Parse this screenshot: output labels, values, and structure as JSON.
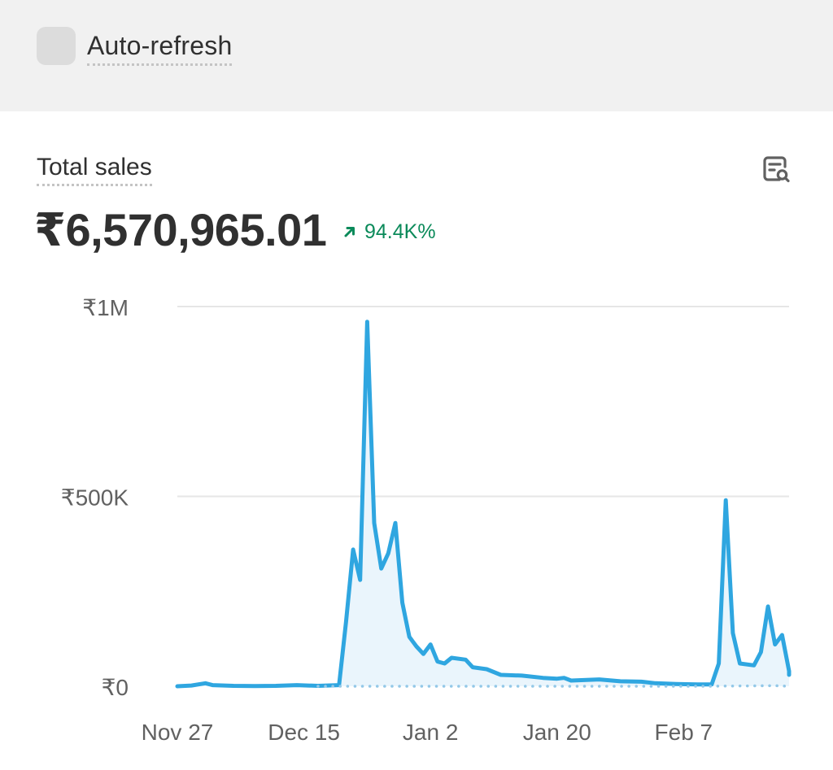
{
  "toolbar": {
    "auto_refresh_label": "Auto-refresh",
    "auto_refresh_checked": false
  },
  "card": {
    "title": "Total sales",
    "total_value": "₹6,570,965.01",
    "change": "94.4K%",
    "change_direction": "up",
    "explore_icon": "chart-search-icon"
  },
  "colors": {
    "line": "#2fa6e0",
    "fill": "#eaf5fc",
    "comparison": "#93c8e8",
    "gridline": "#e6e6e6",
    "positive": "#0b8a5a"
  },
  "chart_data": {
    "type": "line",
    "title": "",
    "xlabel": "",
    "ylabel": "",
    "ylim": [
      0,
      1000000
    ],
    "y_ticks": [
      {
        "value": 0,
        "label": "₹0"
      },
      {
        "value": 500000,
        "label": "₹500K"
      },
      {
        "value": 1000000,
        "label": "₹1M"
      }
    ],
    "x_range": [
      "2024-11-27",
      "2025-02-22"
    ],
    "x_ticks": [
      {
        "date": "2024-11-27",
        "label": "Nov 27"
      },
      {
        "date": "2024-12-15",
        "label": "Dec 15"
      },
      {
        "date": "2025-01-02",
        "label": "Jan 2"
      },
      {
        "date": "2025-01-20",
        "label": "Jan 20"
      },
      {
        "date": "2025-02-07",
        "label": "Feb 7"
      }
    ],
    "grid": true,
    "legend": "none",
    "series": [
      {
        "style": "solid",
        "points": [
          [
            "2024-11-27",
            0
          ],
          [
            "2024-11-29",
            2000
          ],
          [
            "2024-12-01",
            8000
          ],
          [
            "2024-12-02",
            3000
          ],
          [
            "2024-12-05",
            1000
          ],
          [
            "2024-12-08",
            500
          ],
          [
            "2024-12-11",
            1000
          ],
          [
            "2024-12-14",
            3000
          ],
          [
            "2024-12-17",
            1000
          ],
          [
            "2024-12-20",
            3000
          ],
          [
            "2024-12-21",
            170000
          ],
          [
            "2024-12-22",
            360000
          ],
          [
            "2024-12-23",
            280000
          ],
          [
            "2024-12-24",
            960000
          ],
          [
            "2024-12-25",
            430000
          ],
          [
            "2024-12-26",
            310000
          ],
          [
            "2024-12-27",
            350000
          ],
          [
            "2024-12-28",
            430000
          ],
          [
            "2024-12-29",
            220000
          ],
          [
            "2024-12-30",
            130000
          ],
          [
            "2024-12-31",
            105000
          ],
          [
            "2025-01-01",
            85000
          ],
          [
            "2025-01-02",
            110000
          ],
          [
            "2025-01-03",
            65000
          ],
          [
            "2025-01-04",
            60000
          ],
          [
            "2025-01-05",
            75000
          ],
          [
            "2025-01-07",
            70000
          ],
          [
            "2025-01-08",
            50000
          ],
          [
            "2025-01-10",
            45000
          ],
          [
            "2025-01-12",
            30000
          ],
          [
            "2025-01-15",
            28000
          ],
          [
            "2025-01-18",
            22000
          ],
          [
            "2025-01-20",
            20000
          ],
          [
            "2025-01-21",
            22000
          ],
          [
            "2025-01-22",
            15000
          ],
          [
            "2025-01-26",
            18000
          ],
          [
            "2025-01-29",
            13000
          ],
          [
            "2025-02-01",
            12000
          ],
          [
            "2025-02-03",
            8000
          ],
          [
            "2025-02-06",
            6000
          ],
          [
            "2025-02-09",
            5000
          ],
          [
            "2025-02-11",
            5000
          ],
          [
            "2025-02-12",
            60000
          ],
          [
            "2025-02-13",
            490000
          ],
          [
            "2025-02-14",
            140000
          ],
          [
            "2025-02-15",
            60000
          ],
          [
            "2025-02-17",
            55000
          ],
          [
            "2025-02-18",
            90000
          ],
          [
            "2025-02-19",
            210000
          ],
          [
            "2025-02-20",
            110000
          ],
          [
            "2025-02-21",
            135000
          ],
          [
            "2025-02-22",
            40000
          ],
          [
            "2025-02-23",
            30000
          ]
        ]
      },
      {
        "style": "dotted",
        "points": [
          [
            "2024-12-17",
            0
          ],
          [
            "2025-01-10",
            0
          ],
          [
            "2025-02-10",
            0
          ],
          [
            "2025-02-20",
            1500
          ],
          [
            "2025-02-23",
            0
          ]
        ]
      }
    ]
  }
}
